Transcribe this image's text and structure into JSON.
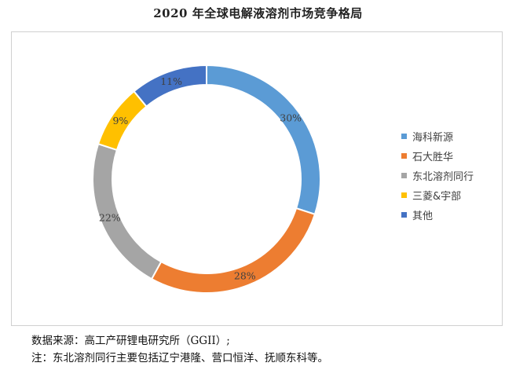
{
  "chart_data": {
    "type": "pie",
    "donut": true,
    "title": "2020 年全球电解液溶剂市场竞争格局",
    "categories": [
      "海科新源",
      "石大胜华",
      "东北溶剂同行",
      "三菱&宇部",
      "其他"
    ],
    "values": [
      30,
      28,
      22,
      9,
      11
    ],
    "labels": [
      "30%",
      "28%",
      "22%",
      "9%",
      "11%"
    ],
    "colors": [
      "#5B9BD5",
      "#ED7D31",
      "#A5A5A5",
      "#FFC000",
      "#4472C4"
    ],
    "legend_position": "right"
  },
  "footnote": {
    "source": "数据来源：高工产研锂电研究所（GGII）;",
    "note": "注：东北溶剂同行主要包括辽宁港隆、营口恒洋、抚顺东科等。"
  }
}
